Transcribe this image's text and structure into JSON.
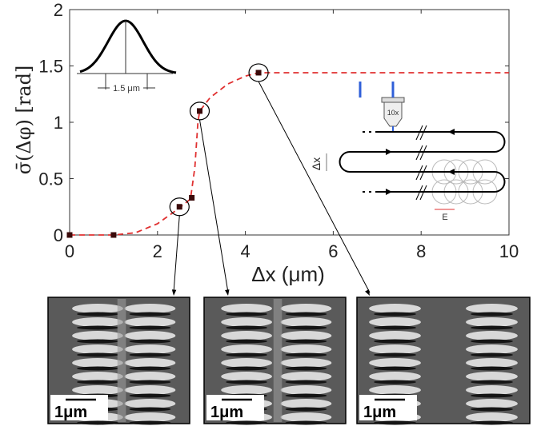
{
  "chart_data": {
    "type": "scatter",
    "xlabel": "Δx (μm)",
    "ylabel": "σ̄(Δφ) [rad]",
    "xlim": [
      0,
      10
    ],
    "ylim": [
      0,
      2
    ],
    "xticks": [
      "0",
      "2",
      "4",
      "6",
      "8",
      "10"
    ],
    "yticks": [
      "0",
      "0.5",
      "1",
      "1.5",
      "2"
    ],
    "grid": false,
    "points": {
      "x": [
        0,
        1,
        2.5,
        2.78,
        2.96,
        4.3
      ],
      "y": [
        0,
        0,
        0.25,
        0.33,
        1.1,
        1.44
      ]
    },
    "fit_curve": {
      "style": "dashed",
      "x": [
        0,
        1,
        1.5,
        2,
        2.5,
        2.75,
        2.85,
        2.92,
        2.96,
        3.2,
        3.6,
        4.0,
        4.3,
        10
      ],
      "y": [
        0,
        0,
        0.02,
        0.1,
        0.24,
        0.32,
        0.6,
        1.0,
        1.1,
        1.22,
        1.34,
        1.41,
        1.44,
        1.44
      ]
    },
    "highlighted_points": [
      2,
      4,
      5
    ],
    "colors": {
      "marker": "#3a0a0a",
      "fit": "#e03030",
      "axis": "#333333"
    },
    "inset_gaussian": {
      "width_label": "1.5 μm"
    },
    "inset_schematic": {
      "objective_label": "10x",
      "spacing_label": "Δx",
      "polarization_label": "E"
    },
    "sem_images": [
      {
        "scale_bar": "1μm"
      },
      {
        "scale_bar": "1μm"
      },
      {
        "scale_bar": "1μm"
      }
    ]
  }
}
